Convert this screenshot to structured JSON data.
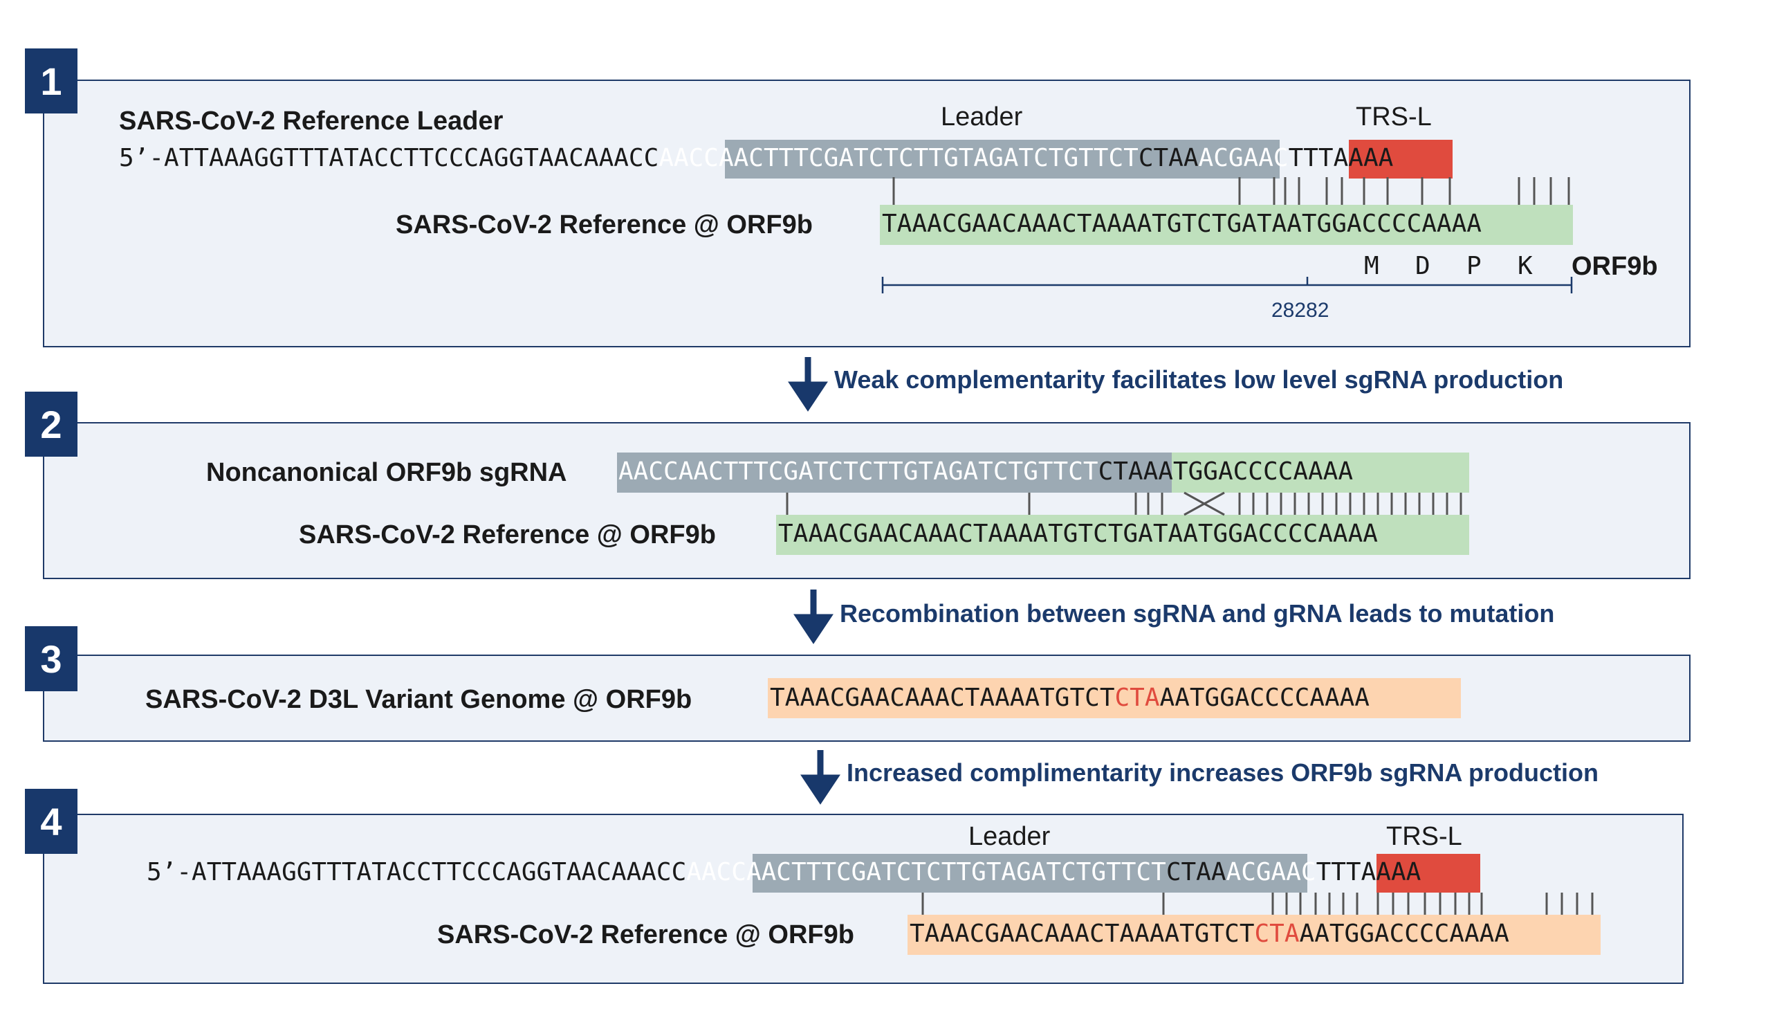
{
  "panels": [
    {
      "number": "1"
    },
    {
      "number": "2"
    },
    {
      "number": "3"
    },
    {
      "number": "4"
    }
  ],
  "panel1": {
    "title": "SARS-CoV-2 Reference Leader",
    "leader_label": "Leader",
    "trs_label": "TRS-L",
    "leader_seq_pre": "5’-ATTAAAGGTTTATACCTTCCCAGGTAACAAACC",
    "leader_seq_grey": "AACCAACTTTCGATCTCTTGTAGATCTGTTCT",
    "leader_seq_mid": "CTAA",
    "leader_seq_red": "ACGAAC",
    "leader_seq_post": "TTTAAAA",
    "ref_label": "SARS-CoV-2 Reference @ ORF9b",
    "ref_seq": "TAAACGAACAAACTAAAATGTCTGATAATGGACCCCAAAA",
    "aa": [
      "M",
      "D",
      "P",
      "K"
    ],
    "orf_label": "ORF9b",
    "position": "28282"
  },
  "step1": "Weak complementarity facilitates low level sgRNA production",
  "panel2": {
    "sg_label": "Noncanonical ORF9b sgRNA",
    "sg_seq_grey": "AACCAACTTTCGATCTCTTGTAGATCTGTTCT",
    "sg_seq_green": "CTAAATGGACCCCAAAA",
    "ref_label": "SARS-CoV-2 Reference @ ORF9b",
    "ref_seq": "TAAACGAACAAACTAAAATGTCTGATAATGGACCCCAAAA"
  },
  "step2": "Recombination between sgRNA and gRNA leads to mutation",
  "panel3": {
    "label": "SARS-CoV-2 D3L Variant Genome @ ORF9b",
    "seq_pre": "TAAACGAACAAACTAAAATGTCT",
    "seq_mut": "CTA",
    "seq_post": "AATGGACCCCAAAA"
  },
  "step3": "Increased complimentarity increases ORF9b sgRNA production",
  "panel4": {
    "leader_label": "Leader",
    "trs_label": "TRS-L",
    "leader_seq_pre": "5’-ATTAAAGGTTTATACCTTCCCAGGTAACAAACC",
    "leader_seq_grey": "AACCAACTTTCGATCTCTTGTAGATCTGTTCT",
    "leader_seq_mid": "CTAA",
    "leader_seq_red": "ACGAAC",
    "leader_seq_post": "TTTAAAA",
    "ref_label": "SARS-CoV-2 Reference @ ORF9b",
    "seq_pre": "TAAACGAACAAACTAAAATGTCT",
    "seq_mut": "CTA",
    "seq_post": "AATGGACCCCAAAA"
  },
  "colors": {
    "navy": "#18386b",
    "panel_bg": "#eef2f8",
    "leader_grey": "#9caab4",
    "trs_red": "#e04b3e",
    "match_green": "#bfe0bd",
    "variant_orange": "#fdd4b0"
  }
}
